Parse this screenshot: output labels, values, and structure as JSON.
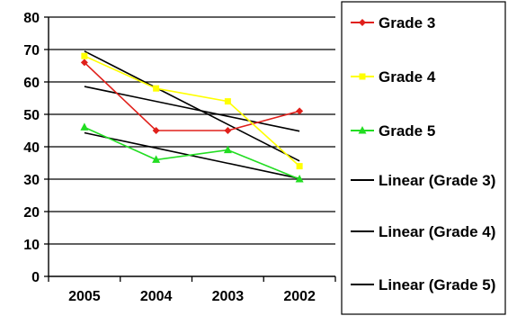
{
  "chart_data": {
    "type": "line",
    "title": "",
    "xlabel": "",
    "ylabel": "",
    "categories": [
      "2005",
      "2004",
      "2003",
      "2002"
    ],
    "ylim": [
      0,
      80
    ],
    "y_ticks": [
      "0",
      "10",
      "20",
      "30",
      "40",
      "50",
      "60",
      "70",
      "80"
    ],
    "grid": "horizontal",
    "legend_position": "right",
    "series": [
      {
        "name": "Grade 3",
        "color": "#e0201b",
        "marker": "diamond",
        "values": [
          66,
          45,
          45,
          51
        ]
      },
      {
        "name": "Grade 4",
        "color": "#ffff00",
        "marker": "square",
        "values": [
          68,
          58,
          54,
          34
        ]
      },
      {
        "name": "Grade 5",
        "color": "#22dd22",
        "marker": "triangle",
        "values": [
          46,
          36,
          39,
          30
        ]
      }
    ],
    "trendlines": [
      {
        "name": "Linear (Grade 3)",
        "color": "#000000",
        "values": [
          58.6,
          54.0,
          49.4,
          44.8
        ]
      },
      {
        "name": "Linear (Grade 4)",
        "color": "#000000",
        "values": [
          69.5,
          58.2,
          46.9,
          35.6
        ]
      },
      {
        "name": "Linear (Grade 5)",
        "color": "#000000",
        "values": [
          44.3,
          39.6,
          34.9,
          30.2
        ]
      }
    ]
  }
}
